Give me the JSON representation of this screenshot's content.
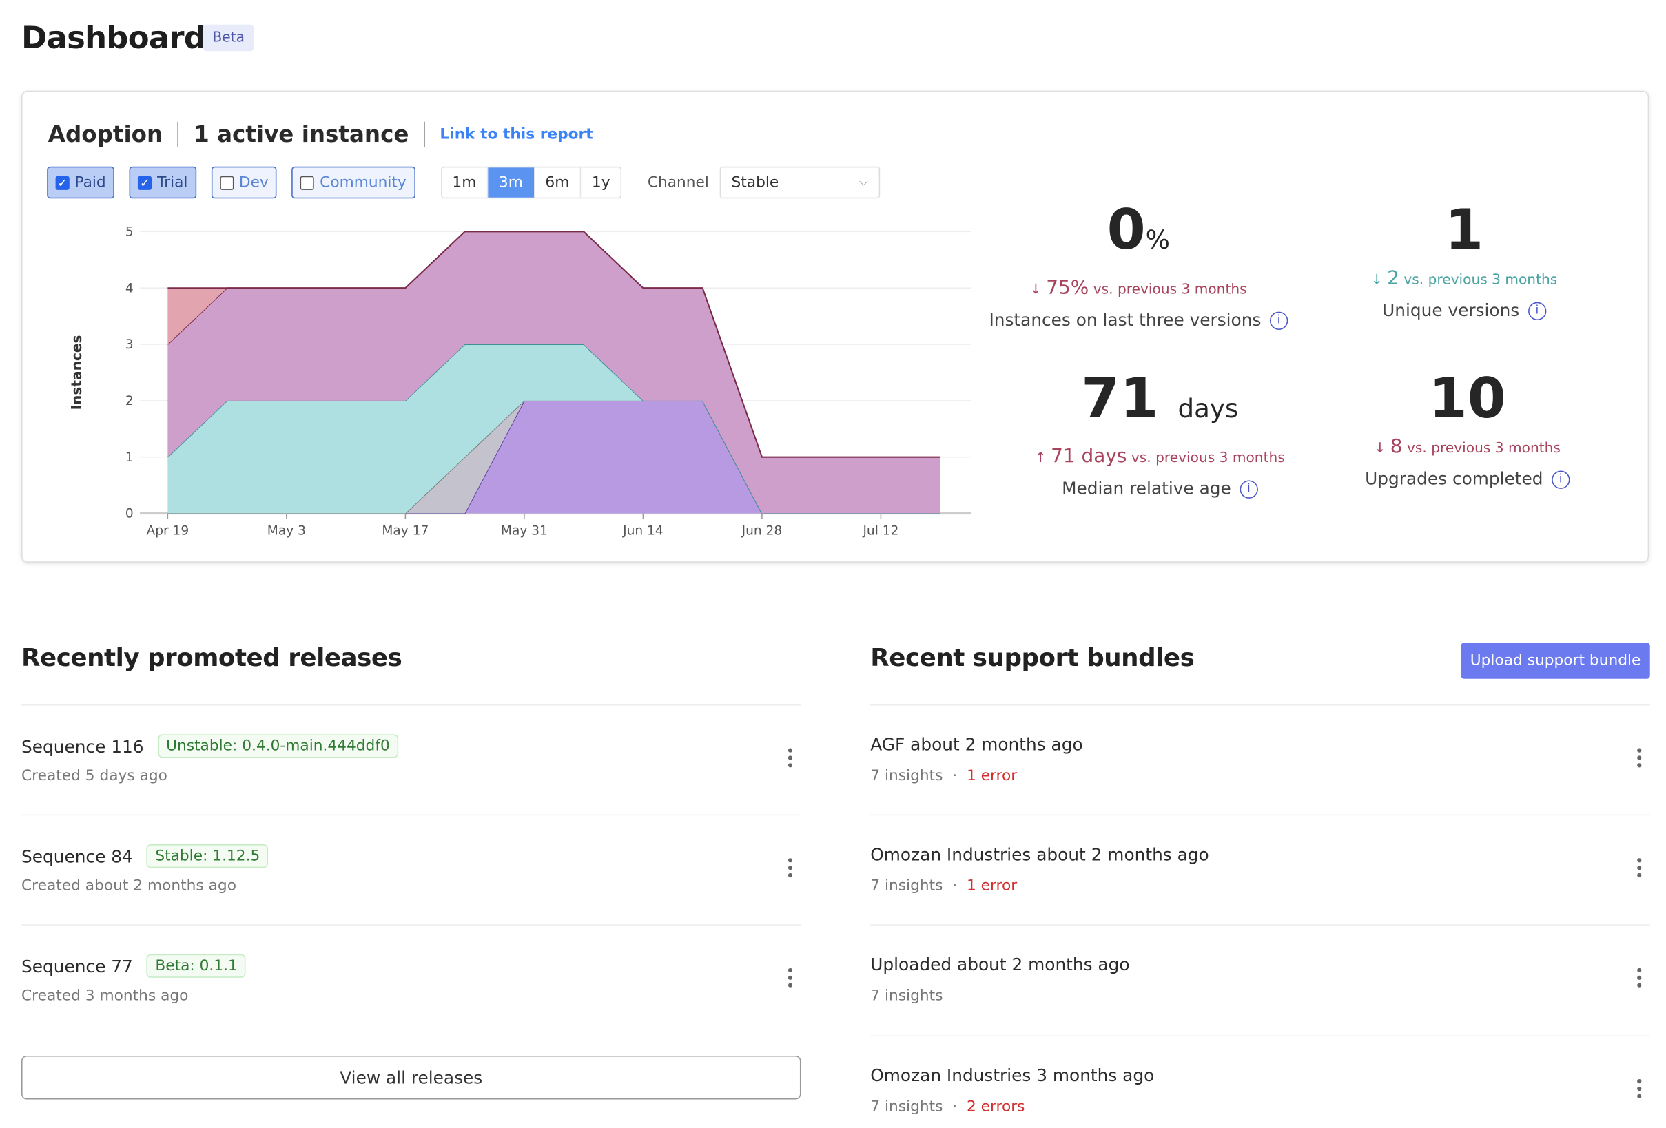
{
  "header": {
    "title": "Dashboard",
    "badge": "Beta"
  },
  "adoption": {
    "title": "Adoption",
    "active": "1 active instance",
    "link": "Link to this report",
    "filters": [
      {
        "label": "Paid",
        "checked": true
      },
      {
        "label": "Trial",
        "checked": true
      },
      {
        "label": "Dev",
        "checked": false
      },
      {
        "label": "Community",
        "checked": false
      }
    ],
    "ranges": [
      {
        "label": "1m",
        "selected": false
      },
      {
        "label": "3m",
        "selected": true
      },
      {
        "label": "6m",
        "selected": false
      },
      {
        "label": "1y",
        "selected": false
      }
    ],
    "channel_label": "Channel",
    "channel_value": "Stable",
    "stats": [
      {
        "value": "0",
        "unit": "%",
        "delta_dir": "down",
        "delta": "75%",
        "delta_text": "vs. previous 3 months",
        "delta_color": "#a8435e",
        "label": "Instances on last three versions"
      },
      {
        "value": "1",
        "unit": "",
        "delta_dir": "down",
        "delta": "2",
        "delta_text": "vs. previous 3 months",
        "delta_color": "#4aa3a3",
        "label": "Unique versions"
      },
      {
        "value": "71",
        "unit": "days",
        "delta_dir": "up",
        "delta": "71 days",
        "delta_text": "vs. previous 3 months",
        "delta_color": "#a8435e",
        "label": "Median relative age"
      },
      {
        "value": "10",
        "unit": "",
        "delta_dir": "down",
        "delta": "8",
        "delta_text": "vs. previous 3 months",
        "delta_color": "#a8435e",
        "label": "Upgrades completed"
      }
    ]
  },
  "chart_data": {
    "type": "area",
    "stacked": true,
    "ylabel": "Instances",
    "xlabel": "",
    "ylim": [
      0,
      5
    ],
    "grid": true,
    "yticks": [
      "0",
      "1",
      "2",
      "3",
      "4",
      "5"
    ],
    "xticks": [
      "Apr 19",
      "May 3",
      "May 17",
      "May 31",
      "Jun 14",
      "Jun 28",
      "Jul 12"
    ],
    "x": [
      "Apr 19",
      "Apr 26",
      "May 3",
      "May 10",
      "May 17",
      "May 24",
      "May 31",
      "Jun 7",
      "Jun 14",
      "Jun 21",
      "Jun 28",
      "Jul 5",
      "Jul 12",
      "Jul 19"
    ],
    "series": [
      {
        "color": "#b89ae3",
        "stroke": "#5a3ea0",
        "values": [
          0,
          0,
          0,
          0,
          0,
          0,
          2,
          2,
          2,
          2,
          0,
          0,
          0,
          0
        ]
      },
      {
        "color": "#c4c2cc",
        "stroke": "#777",
        "values": [
          0,
          0,
          0,
          0,
          0,
          1,
          0,
          0,
          0,
          0,
          0,
          0,
          0,
          0
        ]
      },
      {
        "color": "#aee0e2",
        "stroke": "#3f8f96",
        "values": [
          1,
          2,
          2,
          2,
          2,
          2,
          1,
          1,
          0,
          0,
          0,
          0,
          0,
          0
        ]
      },
      {
        "color": "#cf9fcb",
        "stroke": "#7a2a4a",
        "values": [
          2,
          2,
          2,
          2,
          2,
          2,
          2,
          2,
          2,
          2,
          1,
          1,
          1,
          1
        ]
      },
      {
        "color": "#e2a5b0",
        "stroke": "#7a2a4a",
        "values": [
          1,
          0,
          0,
          0,
          0,
          0,
          0,
          0,
          0,
          0,
          0,
          0,
          0,
          0
        ]
      }
    ]
  },
  "releases": {
    "title": "Recently promoted releases",
    "view_all": "View all releases",
    "items": [
      {
        "name": "Sequence 116",
        "badge": "Unstable: 0.4.0-main.444ddf0",
        "created": "Created 5 days ago"
      },
      {
        "name": "Sequence 84",
        "badge": "Stable: 1.12.5",
        "created": "Created about 2 months ago"
      },
      {
        "name": "Sequence 77",
        "badge": "Beta: 0.1.1",
        "created": "Created 3 months ago"
      }
    ]
  },
  "bundles": {
    "title": "Recent support bundles",
    "upload": "Upload support bundle",
    "items": [
      {
        "name": "AGF about 2 months ago",
        "insights": "7 insights",
        "errors": "1 error"
      },
      {
        "name": "Omozan Industries about 2 months ago",
        "insights": "7 insights",
        "errors": "1 error"
      },
      {
        "name": "Uploaded about 2 months ago",
        "insights": "7 insights",
        "errors": ""
      },
      {
        "name": "Omozan Industries 3 months ago",
        "insights": "7 insights",
        "errors": "2 errors"
      }
    ]
  }
}
